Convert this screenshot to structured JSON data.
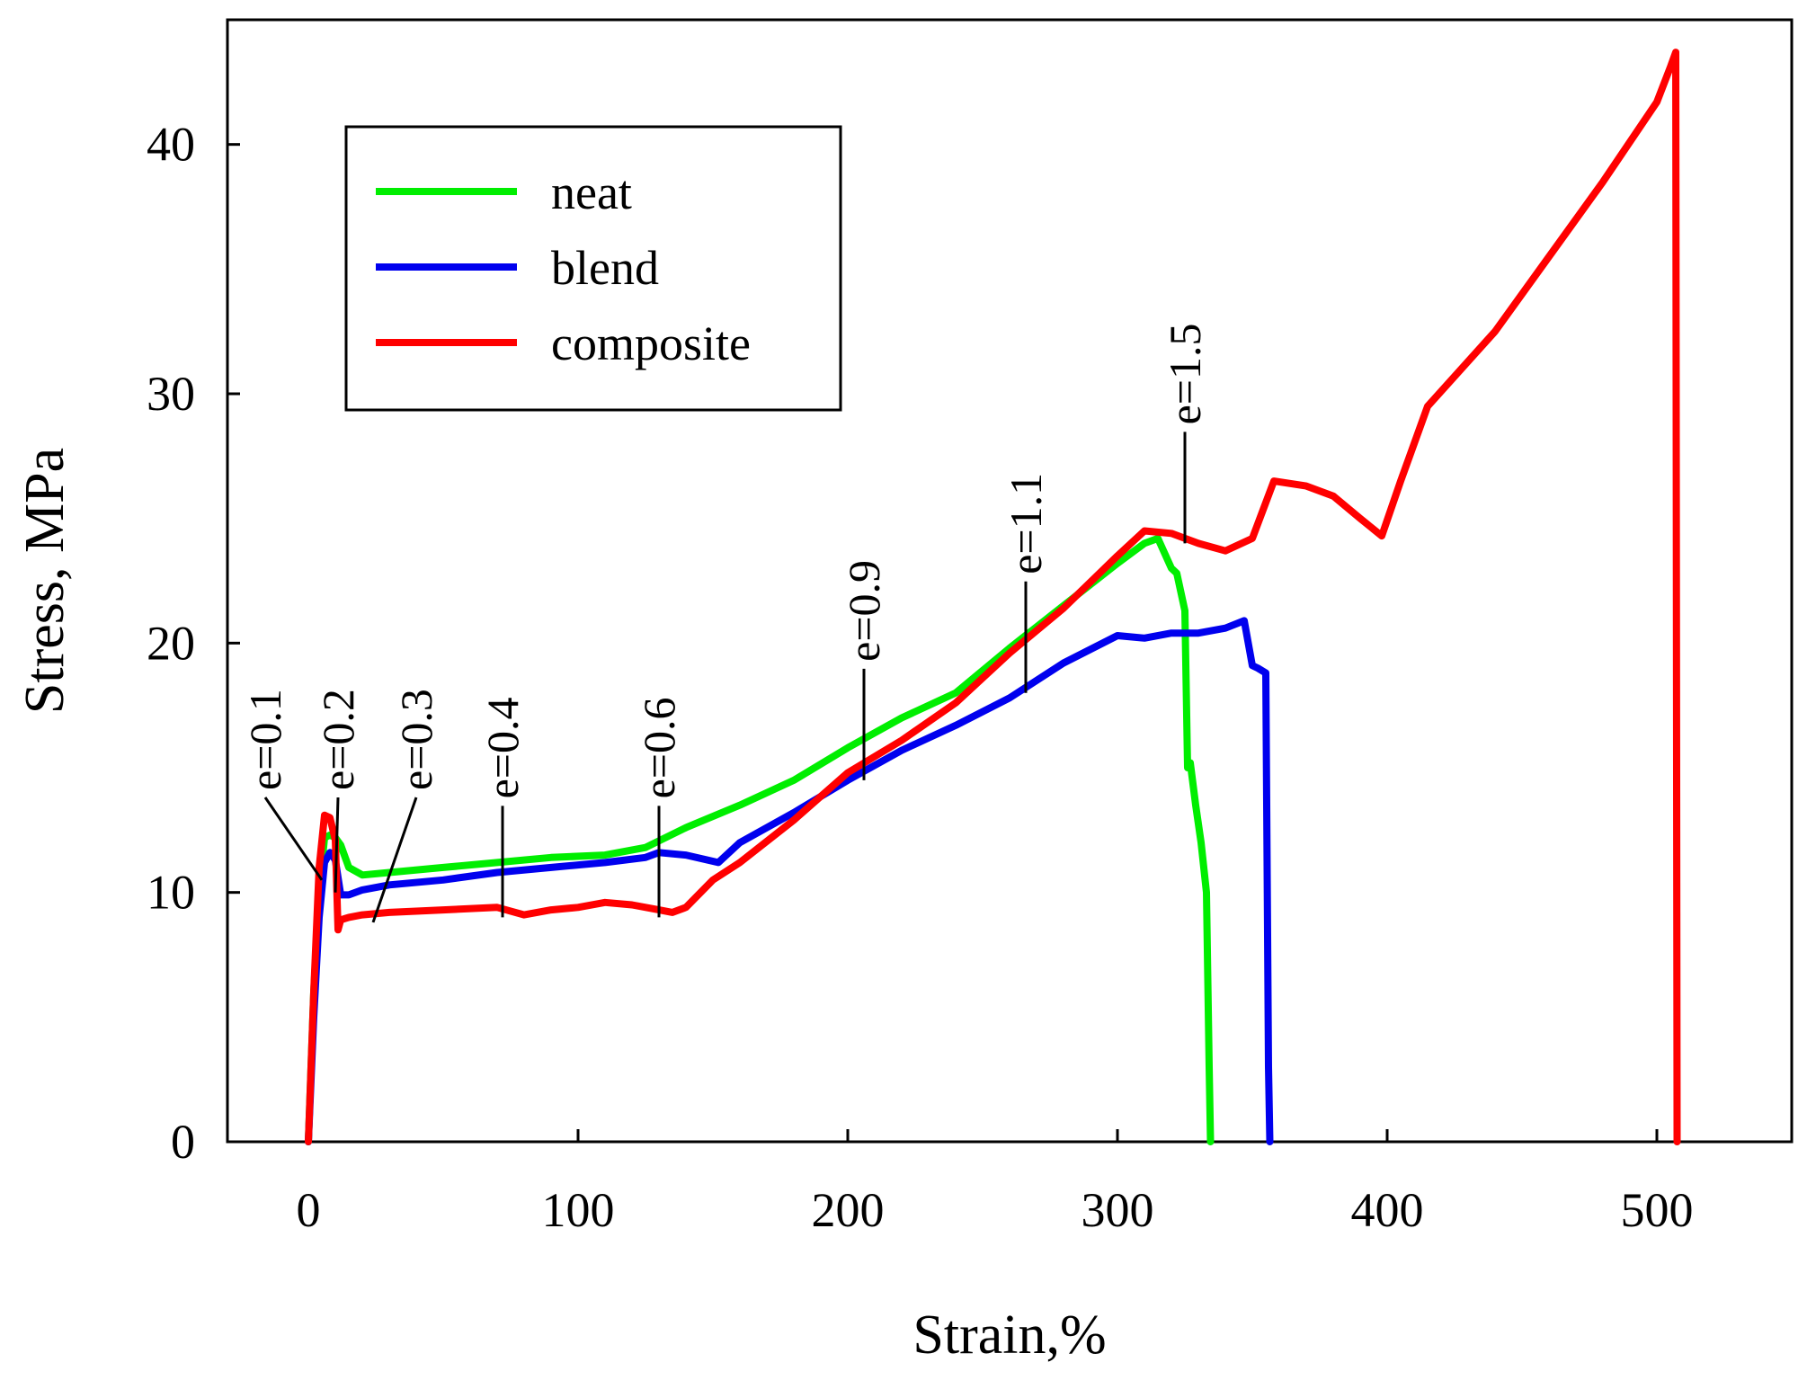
{
  "chart_data": {
    "type": "line",
    "title": "",
    "xlabel": "Strain,%",
    "ylabel": "Stress, MPa",
    "xlim": [
      -30,
      550
    ],
    "ylim": [
      0,
      45
    ],
    "xticks": [
      0,
      100,
      200,
      300,
      400,
      500
    ],
    "yticks": [
      0,
      10,
      20,
      30,
      40
    ],
    "grid": false,
    "legend_position": "top-left",
    "series": [
      {
        "name": "neat",
        "color": "#00ee00",
        "x": [
          0,
          2,
          4,
          6,
          8,
          10,
          12,
          15,
          20,
          30,
          50,
          70,
          90,
          110,
          125,
          140,
          160,
          180,
          200,
          220,
          240,
          260,
          280,
          300,
          310,
          315,
          320,
          322,
          325,
          326,
          327,
          329,
          331,
          333,
          334,
          334.5
        ],
        "y": [
          0,
          6,
          10,
          12.2,
          12.3,
          12.2,
          11.9,
          11.0,
          10.7,
          10.8,
          11.0,
          11.2,
          11.4,
          11.5,
          11.8,
          12.6,
          13.5,
          14.5,
          15.8,
          17.0,
          18.0,
          19.8,
          21.5,
          23.2,
          24.0,
          24.2,
          23.0,
          22.8,
          21.3,
          15.0,
          15.2,
          13.5,
          12.0,
          10.0,
          3.0,
          0
        ]
      },
      {
        "name": "blend",
        "color": "#0000ee",
        "x": [
          0,
          2,
          4,
          6,
          8,
          10,
          12,
          15,
          20,
          30,
          50,
          70,
          90,
          110,
          125,
          130,
          140,
          152,
          160,
          180,
          200,
          220,
          240,
          260,
          280,
          300,
          310,
          320,
          330,
          340,
          347,
          350,
          352,
          355,
          356,
          356.5
        ],
        "y": [
          0,
          5,
          9,
          11.2,
          11.6,
          11.3,
          9.9,
          9.9,
          10.1,
          10.3,
          10.5,
          10.8,
          11.0,
          11.2,
          11.4,
          11.6,
          11.5,
          11.2,
          12.0,
          13.2,
          14.5,
          15.7,
          16.7,
          17.8,
          19.2,
          20.3,
          20.2,
          20.4,
          20.4,
          20.6,
          20.9,
          19.1,
          19.0,
          18.8,
          3.0,
          0
        ]
      },
      {
        "name": "composite",
        "color": "#ff0000",
        "x": [
          0,
          2,
          4,
          6,
          8,
          10,
          11,
          12,
          15,
          20,
          30,
          50,
          70,
          80,
          90,
          100,
          110,
          120,
          130,
          135,
          140,
          150,
          160,
          180,
          200,
          220,
          240,
          260,
          280,
          300,
          310,
          320,
          330,
          340,
          350,
          358,
          370,
          380,
          390,
          398,
          405,
          415,
          440,
          460,
          480,
          500,
          505,
          507,
          507.5
        ],
        "y": [
          0,
          6,
          11,
          13.1,
          13.0,
          12.1,
          8.5,
          8.9,
          9.0,
          9.1,
          9.2,
          9.3,
          9.4,
          9.1,
          9.3,
          9.4,
          9.6,
          9.5,
          9.3,
          9.2,
          9.4,
          10.5,
          11.2,
          12.9,
          14.8,
          16.1,
          17.6,
          19.6,
          21.4,
          23.5,
          24.5,
          24.4,
          24.0,
          23.7,
          24.2,
          26.5,
          26.3,
          25.9,
          25.0,
          24.3,
          26.5,
          29.5,
          32.5,
          35.5,
          38.5,
          41.7,
          43.1,
          43.7,
          0
        ]
      }
    ],
    "annotations": [
      {
        "label": "e=0.1",
        "x": 5,
        "y": 10.5
      },
      {
        "label": "e=0.2",
        "x": 10,
        "y": 10.0
      },
      {
        "label": "e=0.3",
        "x": 24,
        "y": 8.8
      },
      {
        "label": "e=0.4",
        "x": 72,
        "y": 9.0
      },
      {
        "label": "e=0.6",
        "x": 130,
        "y": 9.0
      },
      {
        "label": "e=0.9",
        "x": 206,
        "y": 14.5
      },
      {
        "label": "e=1.1",
        "x": 266,
        "y": 18.0
      },
      {
        "label": "e=1.5",
        "x": 325,
        "y": 24.0
      }
    ]
  }
}
